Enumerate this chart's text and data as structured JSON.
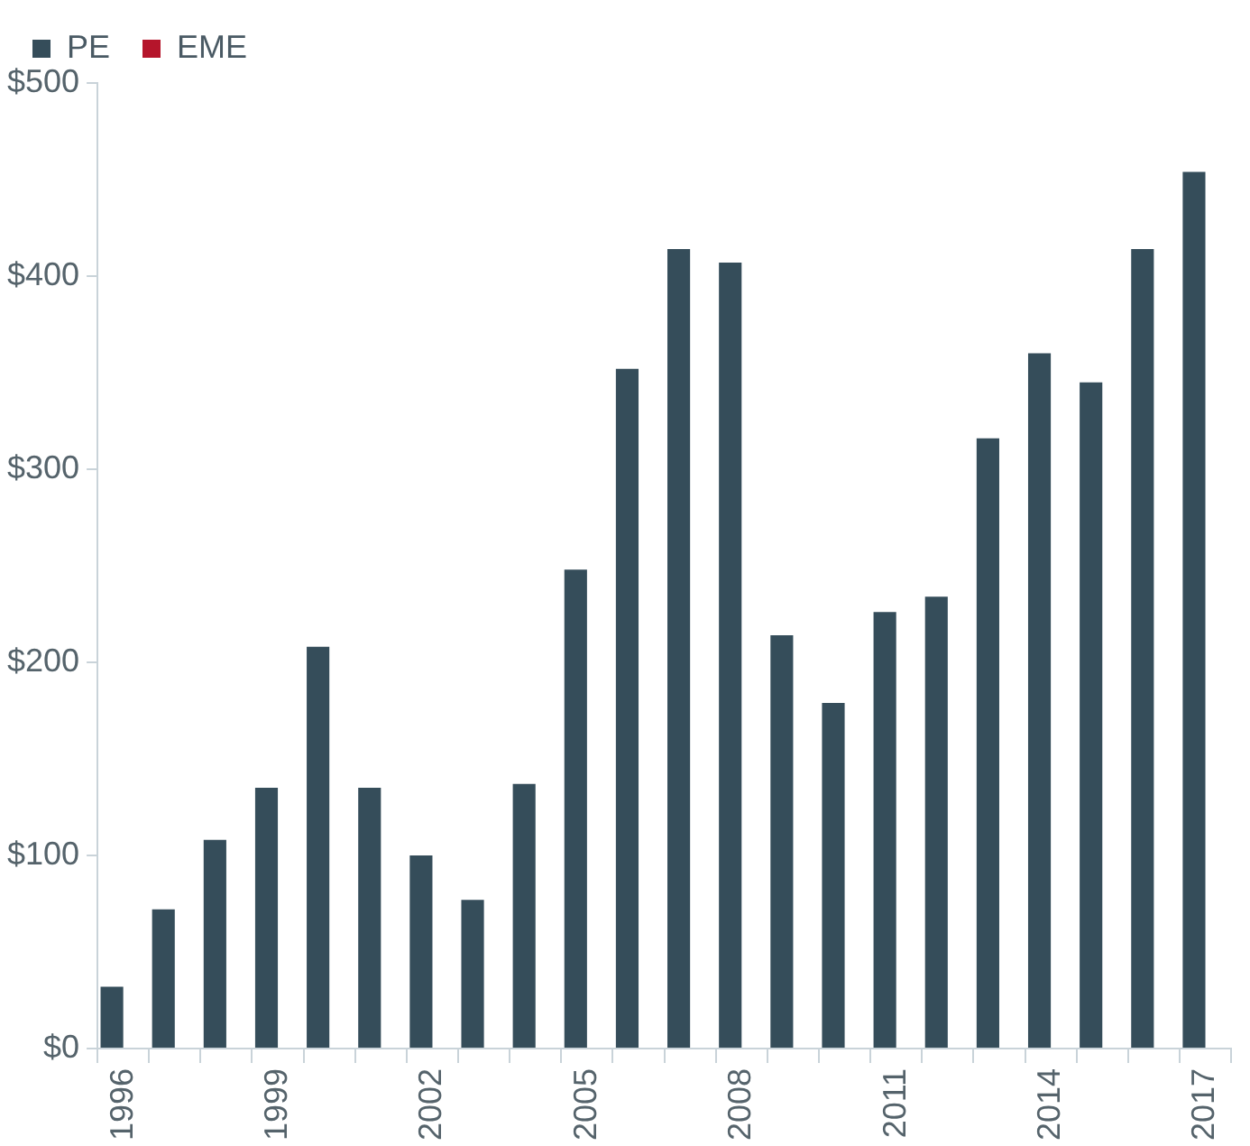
{
  "chart_data": {
    "type": "bar",
    "categories": [
      "1996",
      null,
      null,
      "1999",
      null,
      null,
      "2002",
      null,
      null,
      "2005",
      null,
      null,
      "2008",
      null,
      null,
      "2011",
      null,
      null,
      "2014",
      null,
      null,
      "2017"
    ],
    "series": [
      {
        "name": "PE",
        "color": "#354d5a",
        "values": [
          32,
          72,
          108,
          135,
          208,
          135,
          100,
          77,
          137,
          248,
          352,
          414,
          407,
          214,
          179,
          226,
          234,
          316,
          360,
          345,
          414,
          454
        ]
      },
      {
        "name": "EME",
        "color": "#b5152b",
        "values": [
          null,
          null,
          null,
          null,
          null,
          null,
          null,
          null,
          null,
          null,
          null,
          null,
          null,
          null,
          null,
          null,
          null,
          null,
          null,
          null,
          null,
          null
        ]
      }
    ],
    "ylim": [
      0,
      500
    ],
    "yticks": [
      {
        "value": 0,
        "label": "$0"
      },
      {
        "value": 100,
        "label": "$100"
      },
      {
        "value": 200,
        "label": "$200"
      },
      {
        "value": 300,
        "label": "$300"
      },
      {
        "value": 400,
        "label": "$400"
      },
      {
        "value": 500,
        "label": "$500"
      }
    ],
    "grid": false,
    "legend": "top left"
  }
}
